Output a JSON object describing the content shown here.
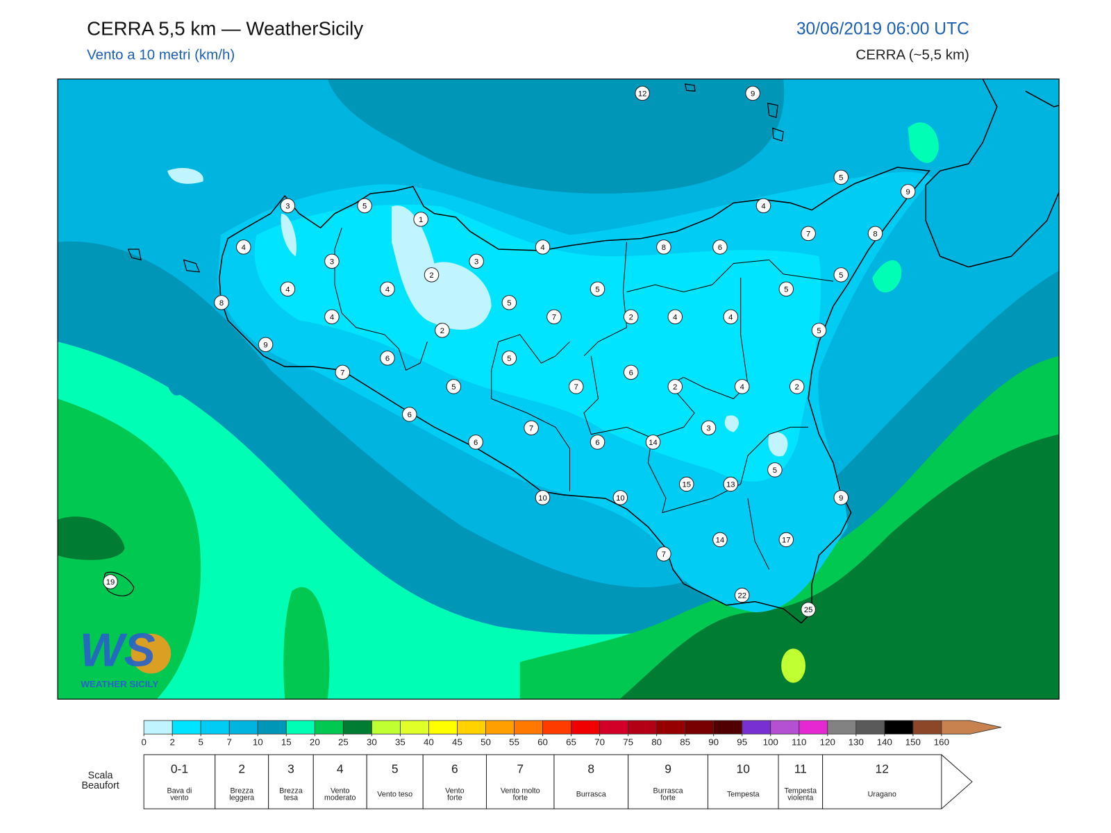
{
  "header": {
    "title": "CERRA 5,5 km — WeatherSicily",
    "subtitle": "Vento a 10 metri (km/h)",
    "datetime": "30/06/2019 06:00 UTC",
    "model": "CERRA (~5,5 km)"
  },
  "stations": [
    12,
    9,
    5,
    9,
    3,
    5,
    1,
    4,
    7,
    8,
    4,
    4,
    8,
    6,
    3,
    3,
    2,
    5,
    4,
    4,
    5,
    5,
    8,
    5,
    4,
    7,
    2,
    4,
    4,
    2,
    5,
    9,
    6,
    5,
    7,
    6,
    5,
    7,
    2,
    4,
    2,
    6,
    7,
    3,
    6,
    6,
    14,
    5,
    15,
    13,
    10,
    10,
    9,
    14,
    17,
    7,
    19,
    22,
    25
  ],
  "colorbar": {
    "ticks": [
      0,
      2,
      5,
      7,
      10,
      15,
      20,
      25,
      30,
      35,
      40,
      45,
      50,
      55,
      60,
      65,
      70,
      75,
      80,
      85,
      90,
      95,
      100,
      110,
      120,
      130,
      140,
      150,
      160
    ],
    "colors": [
      "#c0f4ff",
      "#00e4ff",
      "#00ccf4",
      "#00b4e0",
      "#0096b8",
      "#00ffb4",
      "#00c850",
      "#007d32",
      "#c0ff32",
      "#e0ff28",
      "#ffff00",
      "#ffd200",
      "#ffa000",
      "#ff7800",
      "#ff3c00",
      "#f00000",
      "#d20028",
      "#b40014",
      "#960000",
      "#780000",
      "#500000",
      "#7830d2",
      "#b450d2",
      "#e628d2",
      "#828282",
      "#5a5a5a",
      "#000000",
      "#8c4628",
      "#c88250"
    ]
  },
  "beaufort": {
    "title": [
      "Scala",
      "Beaufort"
    ],
    "levels": [
      {
        "force": "0-1",
        "description": [
          "Bava di",
          "vento"
        ]
      },
      {
        "force": 2,
        "description": [
          "Brezza",
          "leggera"
        ]
      },
      {
        "force": 3,
        "description": [
          "Brezza",
          "tesa"
        ]
      },
      {
        "force": 4,
        "description": [
          "Vento",
          "moderato"
        ]
      },
      {
        "force": 5,
        "description": [
          "Vento teso"
        ]
      },
      {
        "force": 6,
        "description": [
          "Vento",
          "forte"
        ]
      },
      {
        "force": 7,
        "description": [
          "Vento molto",
          "forte"
        ]
      },
      {
        "force": 8,
        "description": [
          "Burrasca"
        ]
      },
      {
        "force": 9,
        "description": [
          "Burrasca",
          "forte"
        ]
      },
      {
        "force": 10,
        "description": [
          "Tempesta"
        ]
      },
      {
        "force": 11,
        "description": [
          "Tempesta",
          "violenta"
        ]
      },
      {
        "force": 12,
        "description": [
          "Uragano"
        ]
      }
    ]
  },
  "logo": {
    "mark": "WS",
    "text": "WEATHER SICILY"
  }
}
